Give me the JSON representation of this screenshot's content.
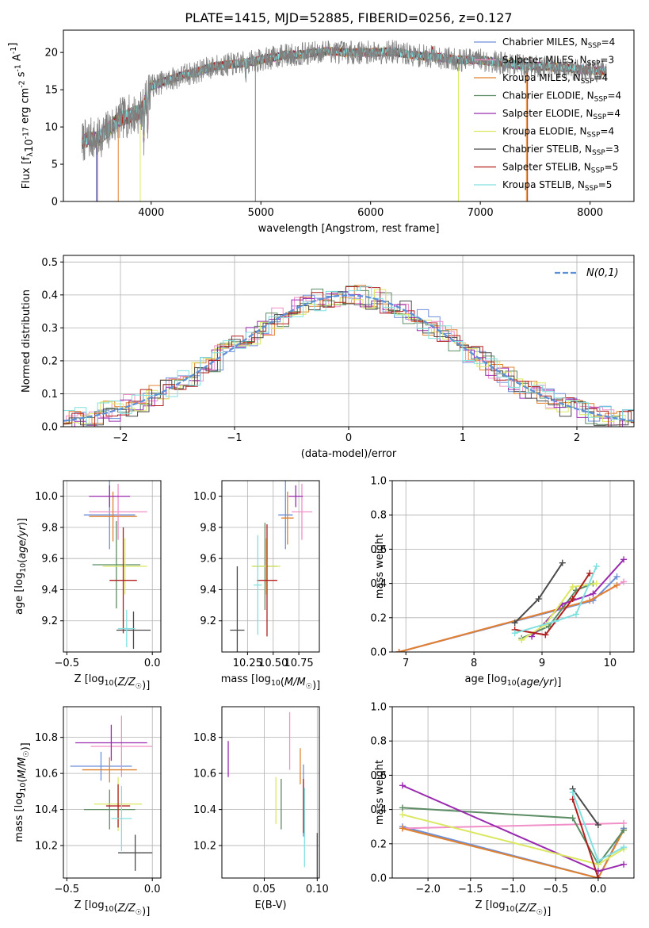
{
  "figure_title": "PLATE=1415, MJD=52885, FIBERID=0256, z=0.127",
  "models": [
    {
      "label": "Chabrier MILES, N$_{SSP}$=4",
      "text": "Chabrier MILES, N",
      "sub": "SSP",
      "tail": "=4",
      "color": "#6d8fd8"
    },
    {
      "label": "Salpeter MILES, N$_{SSP}$=3",
      "text": "Salpeter MILES, N",
      "sub": "SSP",
      "tail": "=3",
      "color": "#f08fc8"
    },
    {
      "label": "Kroupa MILES, N$_{SSP}$=4",
      "text": "Kroupa MILES, N",
      "sub": "SSP",
      "tail": "=4",
      "color": "#e0812f"
    },
    {
      "label": "Chabrier ELODIE, N$_{SSP}$=4",
      "text": "Chabrier ELODIE, N",
      "sub": "SSP",
      "tail": "=4",
      "color": "#5c8c64"
    },
    {
      "label": "Salpeter ELODIE, N$_{SSP}$=4",
      "text": "Salpeter ELODIE, N",
      "sub": "SSP",
      "tail": "=4",
      "color": "#9a2ab0"
    },
    {
      "label": "Kroupa ELODIE, N$_{SSP}$=4",
      "text": "Kroupa ELODIE, N",
      "sub": "SSP",
      "tail": "=4",
      "color": "#dbe862"
    },
    {
      "label": "Chabrier STELIB, N$_{SSP}$=3",
      "text": "Chabrier STELIB, N",
      "sub": "SSP",
      "tail": "=3",
      "color": "#4a4a4a"
    },
    {
      "label": "Salpeter STELIB, N$_{SSP}$=5",
      "text": "Salpeter STELIB, N",
      "sub": "SSP",
      "tail": "=5",
      "color": "#b0201e"
    },
    {
      "label": "Kroupa STELIB, N$_{SSP}$=5",
      "text": "Kroupa STELIB, N",
      "sub": "SSP",
      "tail": "=5",
      "color": "#80e0e0"
    }
  ],
  "chart_data": [
    {
      "id": "spectrum",
      "type": "line",
      "xlabel": "wavelength [Angstrom, rest frame]",
      "ylabel": "Flux [f$_\\lambda$10$^{-17}$ erg cm$^{-2}$ s$^{-1}$ A$^{-1}$]",
      "xlim": [
        3200,
        8400
      ],
      "ylim": [
        0,
        23
      ],
      "xticks": [
        4000,
        5000,
        6000,
        7000,
        8000
      ],
      "yticks": [
        0,
        5,
        10,
        15,
        20
      ],
      "data_color": "#808080",
      "data_shape": {
        "x": [
          3370,
          3450,
          3500,
          3600,
          3700,
          3800,
          3900,
          3950,
          4000,
          4100,
          4200,
          4300,
          4400,
          4500,
          4600,
          4800,
          5000,
          5200,
          5400,
          5600,
          5800,
          6000,
          6200,
          6400,
          6600,
          6800,
          7000,
          7200,
          7400,
          7600,
          7800,
          8000,
          8150
        ],
        "y": [
          8.0,
          8.5,
          8.2,
          9.5,
          11.0,
          11.5,
          12.0,
          13.5,
          15.5,
          16.0,
          16.5,
          17.0,
          17.3,
          17.8,
          18.2,
          18.5,
          19.0,
          19.6,
          19.8,
          20.2,
          20.0,
          20.0,
          20.1,
          19.6,
          19.4,
          19.0,
          19.0,
          18.6,
          18.2,
          18.1,
          17.9,
          17.6,
          17.5
        ]
      },
      "legend": "top-right"
    },
    {
      "id": "residuals",
      "type": "area",
      "xlabel": "(data-model)/error",
      "ylabel": "Normed distribution",
      "xlim": [
        -2.5,
        2.5
      ],
      "ylim": [
        0,
        0.52
      ],
      "xticks": [
        -2,
        -1,
        0,
        1,
        2
      ],
      "yticks": [
        0.0,
        0.1,
        0.2,
        0.3,
        0.4,
        0.5
      ],
      "normal_curve": {
        "label": "$\\mathcal{N}(0,1)$",
        "color": "#5b8fd6"
      },
      "legend": "top-right",
      "grid": true
    },
    {
      "id": "age-vs-Z",
      "type": "scatter",
      "xlabel": "Z [log$_{10}$($Z/Z_\\odot$)]",
      "ylabel": "age  [log$_{10}$($age/yr$)]",
      "xlim": [
        -0.52,
        0.05
      ],
      "ylim": [
        9.0,
        10.1
      ],
      "xticks": [
        -0.5,
        0.0
      ],
      "yticks": [
        9.2,
        9.4,
        9.6,
        9.8,
        10.0
      ],
      "points": [
        {
          "model": 0,
          "x": -0.25,
          "xerr": 0.15,
          "y": 9.88,
          "yerr": 0.22
        },
        {
          "model": 1,
          "x": -0.2,
          "xerr": 0.17,
          "y": 9.9,
          "yerr": 0.18
        },
        {
          "model": 2,
          "x": -0.23,
          "xerr": 0.14,
          "y": 9.87,
          "yerr": 0.16
        },
        {
          "model": 3,
          "x": -0.21,
          "xerr": 0.14,
          "y": 9.56,
          "yerr": 0.28
        },
        {
          "model": 4,
          "x": -0.25,
          "xerr": 0.12,
          "y": 10.0,
          "yerr": 0.07
        },
        {
          "model": 5,
          "x": -0.16,
          "xerr": 0.13,
          "y": 9.55,
          "yerr": 0.18
        },
        {
          "model": 6,
          "x": -0.11,
          "xerr": 0.1,
          "y": 9.14,
          "yerr": 0.12
        },
        {
          "model": 7,
          "x": -0.17,
          "xerr": 0.08,
          "y": 9.46,
          "yerr": 0.34
        },
        {
          "model": 8,
          "x": -0.15,
          "xerr": 0.05,
          "y": 9.15,
          "yerr": 0.12
        }
      ],
      "grid": true
    },
    {
      "id": "age-vs-mass",
      "type": "scatter",
      "xlabel": "mass [log$_{10}$($M/M_\\odot$)]",
      "ylabel": "",
      "xlim": [
        10.0,
        10.95
      ],
      "ylim": [
        9.0,
        10.1
      ],
      "xticks": [
        10.25,
        10.5,
        10.75
      ],
      "yticks": [
        9.2,
        9.4,
        9.6,
        9.8,
        10.0
      ],
      "points": [
        {
          "model": 0,
          "x": 10.62,
          "xerr": 0.07,
          "y": 9.88,
          "yerr": 0.22
        },
        {
          "model": 1,
          "x": 10.78,
          "xerr": 0.1,
          "y": 9.9,
          "yerr": 0.18
        },
        {
          "model": 2,
          "x": 10.64,
          "xerr": 0.06,
          "y": 9.86,
          "yerr": 0.17
        },
        {
          "model": 3,
          "x": 10.42,
          "xerr": 0.12,
          "y": 9.55,
          "yerr": 0.28
        },
        {
          "model": 4,
          "x": 10.72,
          "xerr": 0.07,
          "y": 10.0,
          "yerr": 0.07
        },
        {
          "model": 5,
          "x": 10.43,
          "xerr": 0.14,
          "y": 9.55,
          "yerr": 0.18
        },
        {
          "model": 6,
          "x": 10.15,
          "xerr": 0.07,
          "y": 9.14,
          "yerr": 0.41
        },
        {
          "model": 7,
          "x": 10.44,
          "xerr": 0.1,
          "y": 9.46,
          "yerr": 0.36
        },
        {
          "model": 8,
          "x": 10.35,
          "xerr": 0.04,
          "y": 9.43,
          "yerr": 0.32
        }
      ],
      "grid": true
    },
    {
      "id": "mass-weight-vs-age",
      "type": "line",
      "xlabel": "age  [log$_{10}$($age/yr$)]",
      "ylabel": "mass weight",
      "xlim": [
        6.8,
        10.35
      ],
      "ylim": [
        0,
        1
      ],
      "xticks": [
        7,
        8,
        9,
        10
      ],
      "yticks": [
        0.0,
        0.2,
        0.4,
        0.6,
        0.8,
        1.0
      ],
      "series": [
        {
          "model": 0,
          "x": [
            6.9,
            9.75,
            10.1
          ],
          "y": [
            0.0,
            0.3,
            0.44
          ]
        },
        {
          "model": 1,
          "x": [
            6.9,
            9.7,
            10.2
          ],
          "y": [
            0.0,
            0.3,
            0.41
          ]
        },
        {
          "model": 2,
          "x": [
            6.9,
            9.7,
            10.1
          ],
          "y": [
            0.0,
            0.3,
            0.39
          ]
        },
        {
          "model": 3,
          "x": [
            8.7,
            9.1,
            9.5,
            9.75
          ],
          "y": [
            0.08,
            0.15,
            0.36,
            0.4
          ]
        },
        {
          "model": 4,
          "x": [
            8.85,
            9.3,
            9.75,
            10.2
          ],
          "y": [
            0.09,
            0.28,
            0.34,
            0.54
          ]
        },
        {
          "model": 5,
          "x": [
            8.7,
            9.05,
            9.45,
            9.8
          ],
          "y": [
            0.07,
            0.16,
            0.38,
            0.4
          ]
        },
        {
          "model": 6,
          "x": [
            8.6,
            8.95,
            9.3
          ],
          "y": [
            0.17,
            0.31,
            0.52
          ]
        },
        {
          "model": 7,
          "x": [
            8.6,
            9.05,
            9.45,
            9.7
          ],
          "y": [
            0.13,
            0.1,
            0.31,
            0.46
          ]
        },
        {
          "model": 8,
          "x": [
            8.6,
            9.2,
            9.5,
            9.8
          ],
          "y": [
            0.11,
            0.18,
            0.22,
            0.5
          ]
        }
      ],
      "grid": true
    },
    {
      "id": "mass-vs-Z",
      "type": "scatter",
      "xlabel": "Z [log$_{10}$($Z/Z_\\odot$)]",
      "ylabel": "mass [log$_{10}$($M/M_\\odot$)]",
      "xlim": [
        -0.52,
        0.05
      ],
      "ylim": [
        10.02,
        10.97
      ],
      "xticks": [
        -0.5,
        0.0
      ],
      "yticks": [
        10.2,
        10.4,
        10.6,
        10.8
      ],
      "points": [
        {
          "model": 0,
          "x": -0.3,
          "xerr": 0.18,
          "y": 10.64,
          "yerr": 0.08
        },
        {
          "model": 1,
          "x": -0.18,
          "xerr": 0.18,
          "y": 10.75,
          "yerr": 0.17
        },
        {
          "model": 2,
          "x": -0.25,
          "xerr": 0.16,
          "y": 10.62,
          "yerr": 0.07
        },
        {
          "model": 3,
          "x": -0.25,
          "xerr": 0.15,
          "y": 10.4,
          "yerr": 0.11
        },
        {
          "model": 4,
          "x": -0.24,
          "xerr": 0.21,
          "y": 10.77,
          "yerr": 0.1
        },
        {
          "model": 5,
          "x": -0.2,
          "xerr": 0.14,
          "y": 10.43,
          "yerr": 0.15
        },
        {
          "model": 6,
          "x": -0.1,
          "xerr": 0.1,
          "y": 10.16,
          "yerr": 0.1
        },
        {
          "model": 7,
          "x": -0.2,
          "xerr": 0.07,
          "y": 10.42,
          "yerr": 0.12
        },
        {
          "model": 8,
          "x": -0.18,
          "xerr": 0.06,
          "y": 10.35,
          "yerr": 0.18
        }
      ],
      "grid": true
    },
    {
      "id": "mass-vs-EBV",
      "type": "scatter",
      "xlabel": "E(B-V)",
      "ylabel": "",
      "xlim": [
        0.01,
        0.102
      ],
      "ylim": [
        10.02,
        10.97
      ],
      "xticks": [
        0.05,
        0.1
      ],
      "yticks": [
        10.2,
        10.4,
        10.6,
        10.8
      ],
      "points": [
        {
          "model": 0,
          "x": 0.087,
          "xerr": 0.0,
          "y": 10.45,
          "yerr": 0.2
        },
        {
          "model": 1,
          "x": 0.074,
          "xerr": 0.0,
          "y": 10.78,
          "yerr": 0.16
        },
        {
          "model": 2,
          "x": 0.084,
          "xerr": 0.0,
          "y": 10.64,
          "yerr": 0.1
        },
        {
          "model": 3,
          "x": 0.066,
          "xerr": 0.0,
          "y": 10.43,
          "yerr": 0.14
        },
        {
          "model": 4,
          "x": 0.016,
          "xerr": 0.0,
          "y": 10.68,
          "yerr": 0.1
        },
        {
          "model": 5,
          "x": 0.061,
          "xerr": 0.0,
          "y": 10.45,
          "yerr": 0.13
        },
        {
          "model": 6,
          "x": 0.1,
          "xerr": 0.0,
          "y": 10.1,
          "yerr": 0.17
        },
        {
          "model": 7,
          "x": 0.087,
          "xerr": 0.0,
          "y": 10.42,
          "yerr": 0.15
        },
        {
          "model": 8,
          "x": 0.088,
          "xerr": 0.0,
          "y": 10.3,
          "yerr": 0.22
        }
      ],
      "grid": true
    },
    {
      "id": "mass-weight-vs-Z",
      "type": "line",
      "xlabel": "Z [log$_{10}$($Z/Z_\\odot$)]",
      "ylabel": "mass weight",
      "xlim": [
        -2.42,
        0.42
      ],
      "ylim": [
        0,
        1
      ],
      "xticks": [
        -2.0,
        -1.5,
        -1.0,
        -0.5,
        0.0
      ],
      "yticks": [
        0.0,
        0.2,
        0.4,
        0.6,
        0.8,
        1.0
      ],
      "series": [
        {
          "model": 0,
          "x": [
            -2.3,
            0.0,
            0.3
          ],
          "y": [
            0.3,
            0.0,
            0.29
          ]
        },
        {
          "model": 1,
          "x": [
            -2.3,
            0.3
          ],
          "y": [
            0.29,
            0.32
          ]
        },
        {
          "model": 2,
          "x": [
            -2.3,
            0.0,
            0.3
          ],
          "y": [
            0.29,
            0.0,
            0.28
          ]
        },
        {
          "model": 3,
          "x": [
            -2.3,
            -0.3,
            0.0,
            0.3
          ],
          "y": [
            0.41,
            0.35,
            0.08,
            0.28
          ]
        },
        {
          "model": 4,
          "x": [
            -2.3,
            0.0,
            0.3
          ],
          "y": [
            0.54,
            0.04,
            0.08
          ]
        },
        {
          "model": 5,
          "x": [
            -2.3,
            0.0,
            0.3
          ],
          "y": [
            0.37,
            0.08,
            0.17
          ]
        },
        {
          "model": 6,
          "x": [
            -0.3,
            0.0
          ],
          "y": [
            0.52,
            0.31
          ]
        },
        {
          "model": 7,
          "x": [
            -0.3,
            0.0
          ],
          "y": [
            0.46,
            0.0
          ]
        },
        {
          "model": 8,
          "x": [
            -0.3,
            0.0,
            0.3
          ],
          "y": [
            0.5,
            0.1,
            0.18
          ]
        }
      ],
      "grid": true
    }
  ]
}
